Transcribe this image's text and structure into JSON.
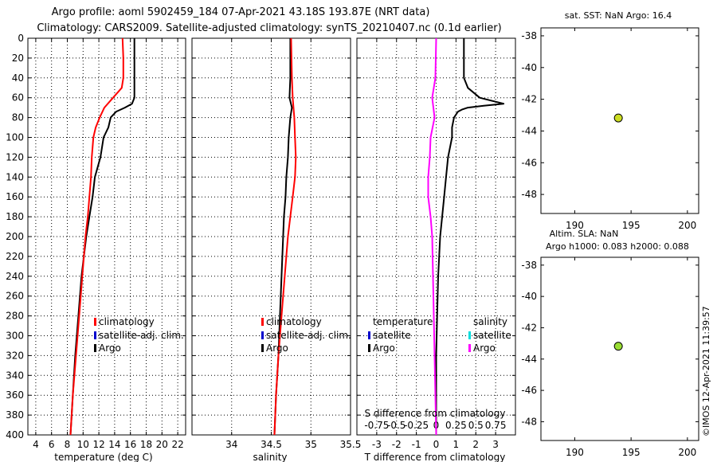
{
  "title": {
    "line1": "Argo profile: aoml 5902459_184 07-Apr-2021 43.18S 193.87E (NRT data)",
    "line2": "Climatology: CARS2009. Satellite-adjusted climatology: synTS_20210407.nc (0.1d earlier)"
  },
  "credit": "©IMOS 12-Apr-2021 11:39:57",
  "colors": {
    "argo": "#000000",
    "climatology": "#ff0000",
    "satellite": "#0000cc",
    "salinity_diff": "#ff00ff",
    "salinity_sat": "#00dddd",
    "sst_marker": "#ccdd22",
    "sla_marker": "#99dd33"
  },
  "chart_data": [
    {
      "type": "line",
      "name": "temperature",
      "xlabel": "temperature (deg C)",
      "ylabel": "",
      "xlim": [
        3,
        23
      ],
      "ylim": [
        400,
        0
      ],
      "xticks": [
        4,
        6,
        8,
        10,
        12,
        14,
        16,
        18,
        20,
        22
      ],
      "yticks": [
        0,
        20,
        40,
        60,
        80,
        100,
        120,
        140,
        160,
        180,
        200,
        220,
        240,
        260,
        280,
        300,
        320,
        340,
        360,
        380,
        400
      ],
      "grid": true,
      "legend": [
        "climatology",
        "satellite-adj. clim.",
        "Argo"
      ],
      "series": [
        {
          "name": "Argo",
          "color": "#000000",
          "depth": [
            0,
            60,
            66,
            70,
            74,
            80,
            90,
            100,
            120,
            140,
            160,
            180,
            200,
            240,
            280,
            320,
            360,
            400
          ],
          "values": [
            16.5,
            16.5,
            16.2,
            15.3,
            14.2,
            13.5,
            13.2,
            12.6,
            12.2,
            11.5,
            11.2,
            10.8,
            10.4,
            9.8,
            9.4,
            9.0,
            8.7,
            8.4
          ]
        },
        {
          "name": "climatology",
          "color": "#ff0000",
          "depth": [
            0,
            20,
            40,
            50,
            60,
            70,
            80,
            90,
            100,
            120,
            140,
            160,
            180,
            200,
            240,
            280,
            320,
            360,
            400
          ],
          "values": [
            15.0,
            15.1,
            15.1,
            14.9,
            13.8,
            12.7,
            12.1,
            11.6,
            11.3,
            11.1,
            11.0,
            10.8,
            10.6,
            10.3,
            9.9,
            9.5,
            9.1,
            8.7,
            8.4
          ]
        }
      ]
    },
    {
      "type": "line",
      "name": "salinity",
      "xlabel": "salinity",
      "xlim": [
        33.5,
        35.5
      ],
      "ylim": [
        400,
        0
      ],
      "xticks": [
        34,
        34.5,
        35,
        35.5
      ],
      "xtick_labels": [
        "34",
        "34.5",
        "35",
        "35.5"
      ],
      "grid": true,
      "legend": [
        "climatology",
        "satellite-adj. clim.",
        "Argo"
      ],
      "series": [
        {
          "name": "Argo",
          "color": "#000000",
          "depth": [
            0,
            40,
            60,
            70,
            80,
            100,
            120,
            140,
            160,
            180,
            200,
            240,
            280,
            320,
            360,
            400
          ],
          "values": [
            34.74,
            34.74,
            34.73,
            34.76,
            34.74,
            34.72,
            34.71,
            34.69,
            34.68,
            34.66,
            34.65,
            34.63,
            34.61,
            34.59,
            34.56,
            34.54
          ]
        },
        {
          "name": "climatology",
          "color": "#ff0000",
          "depth": [
            0,
            40,
            60,
            80,
            100,
            120,
            140,
            160,
            180,
            200,
            240,
            280,
            320,
            360,
            400
          ],
          "values": [
            34.75,
            34.76,
            34.77,
            34.79,
            34.8,
            34.81,
            34.8,
            34.77,
            34.74,
            34.71,
            34.67,
            34.63,
            34.59,
            34.56,
            34.54
          ]
        }
      ]
    },
    {
      "type": "line",
      "name": "differences",
      "xlabel": "T difference from climatology",
      "top_label": "S difference from climatology",
      "xlim": [
        -4,
        4
      ],
      "ylim": [
        400,
        0
      ],
      "xticks": [
        -3,
        -2,
        -1,
        0,
        1,
        2,
        3
      ],
      "xtick_labels": [
        "-3",
        "-2",
        "-1",
        "0",
        "1",
        "2",
        "3"
      ],
      "top_ticks": [
        -0.75,
        -0.5,
        -0.25,
        0,
        0.25,
        0.5,
        0.75
      ],
      "top_tick_labels": [
        "-0.75",
        "-0.5",
        "-0.25",
        "0",
        "0.25",
        "0.5",
        "0.75"
      ],
      "grid": true,
      "legend_temperature": {
        "title": "temperature",
        "items": [
          "satellite",
          "Argo"
        ]
      },
      "legend_salinity": {
        "title": "salinity",
        "items": [
          "satellite",
          "Argo"
        ]
      },
      "series": [
        {
          "name": "T difference (Argo)",
          "color": "#000000",
          "depth": [
            0,
            40,
            50,
            60,
            64,
            66,
            68,
            70,
            72,
            74,
            80,
            90,
            100,
            120,
            140,
            160,
            180,
            200,
            240,
            280,
            320,
            360,
            400
          ],
          "values": [
            1.4,
            1.4,
            1.6,
            2.2,
            3.0,
            3.4,
            2.4,
            1.6,
            1.3,
            1.1,
            0.9,
            0.8,
            0.8,
            0.6,
            0.5,
            0.4,
            0.3,
            0.2,
            0.1,
            0.05,
            0.0,
            0.0,
            0.0
          ]
        },
        {
          "name": "S difference (Argo)",
          "color": "#ff00ff",
          "depth": [
            0,
            40,
            60,
            80,
            100,
            120,
            140,
            160,
            180,
            200,
            240,
            280,
            320,
            360,
            400
          ],
          "values": [
            0.0,
            -0.01,
            -0.05,
            -0.02,
            -0.07,
            -0.08,
            -0.1,
            -0.1,
            -0.07,
            -0.05,
            -0.04,
            -0.03,
            -0.02,
            -0.01,
            0.0
          ]
        }
      ]
    },
    {
      "type": "scatter",
      "name": "satellite SST map",
      "title": "sat. SST: NaN Argo: 16.4",
      "xlim": [
        187,
        201
      ],
      "ylim": [
        -49.2,
        -37.5
      ],
      "xticks": [
        190,
        195,
        200
      ],
      "yticks": [
        -38,
        -40,
        -42,
        -44,
        -46,
        -48
      ],
      "points": [
        {
          "x": 193.87,
          "y": -43.18
        }
      ]
    },
    {
      "type": "scatter",
      "name": "altimetry SLA map",
      "title_line1": "Altim. SLA: NaN",
      "title_line2": "Argo h1000: 0.083 h2000: 0.088",
      "xlim": [
        187,
        201
      ],
      "ylim": [
        -49.2,
        -37.5
      ],
      "xticks": [
        190,
        195,
        200
      ],
      "yticks": [
        -38,
        -40,
        -42,
        -44,
        -46,
        -48
      ],
      "points": [
        {
          "x": 193.87,
          "y": -43.18
        }
      ]
    }
  ]
}
